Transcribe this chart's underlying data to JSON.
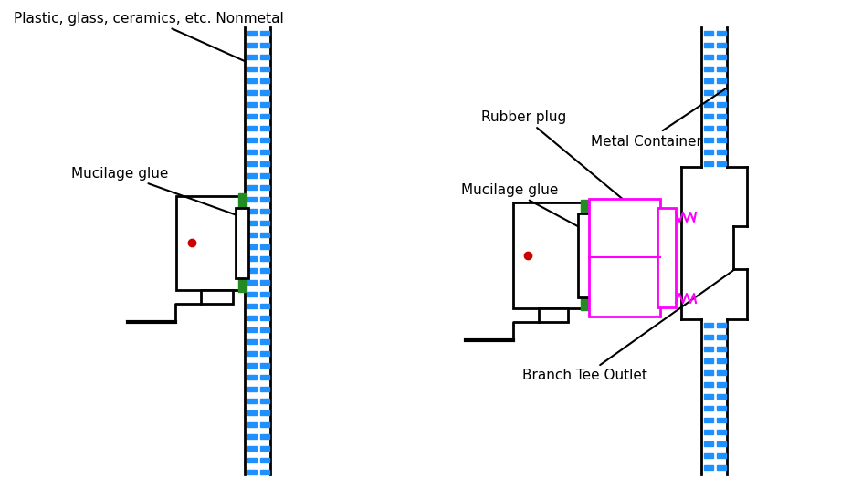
{
  "bg_color": "#ffffff",
  "line_color": "#000000",
  "green_color": "#228B22",
  "blue_color": "#1E90FF",
  "magenta_color": "#FF00FF",
  "red_color": "#CC0000",
  "labels": {
    "nonmetal": "Plastic, glass, ceramics, etc. Nonmetal",
    "mucilage1": "Mucilage glue",
    "rubber_plug": "Rubber plug",
    "metal_container": "Metal Container",
    "mucilage2": "Mucilage glue",
    "branch_tee": "Branch Tee Outlet"
  }
}
